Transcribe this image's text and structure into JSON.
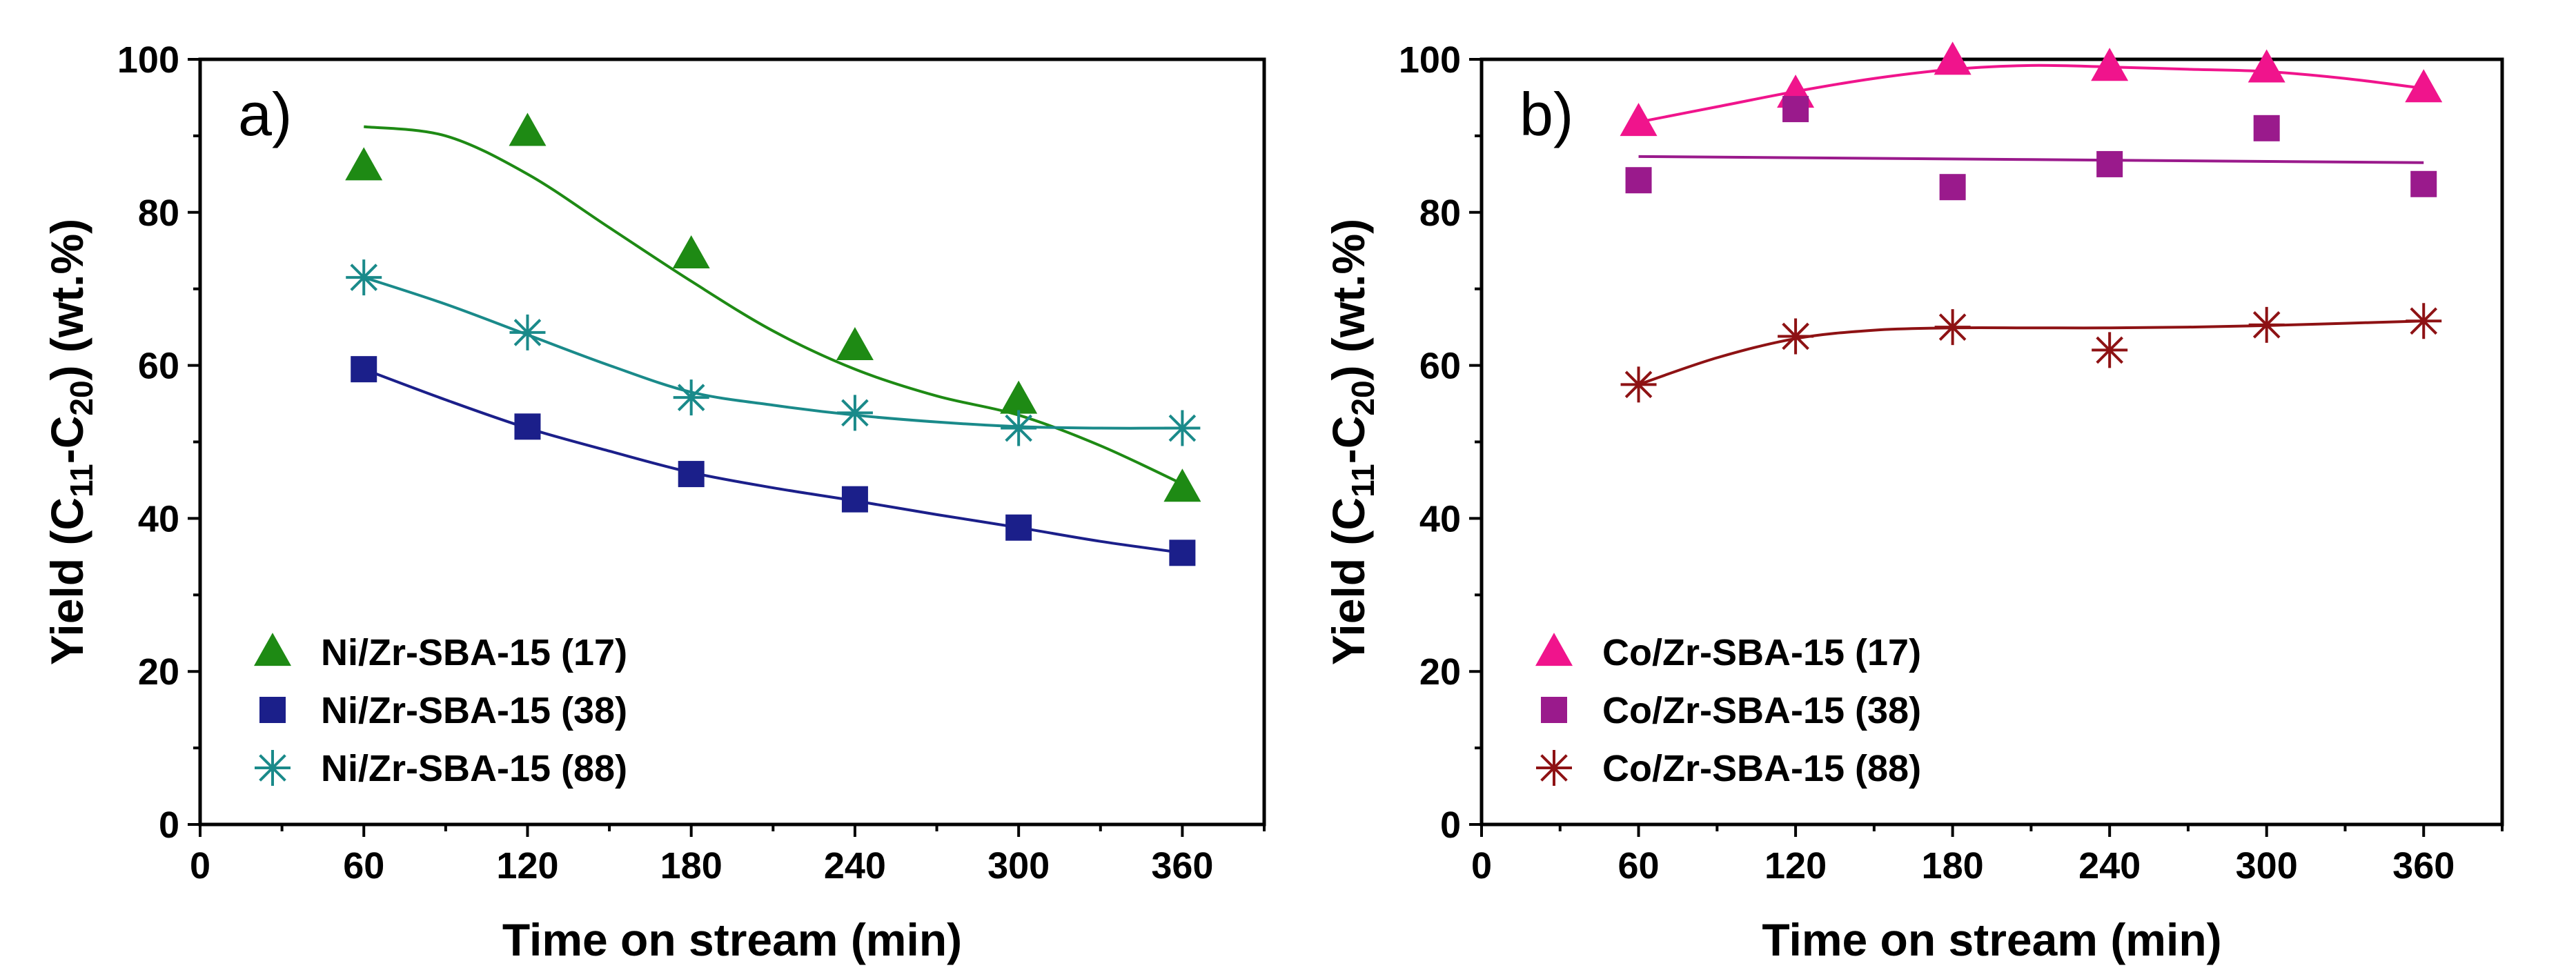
{
  "chart_data": [
    {
      "type": "scatter",
      "panel_label": "a)",
      "xlabel": "Time on stream (min)",
      "ylabel": {
        "prefix": "Yield (C",
        "sub1": "11",
        "mid": "-C",
        "sub2": "20",
        "suffix": ") (wt.%)"
      },
      "xlim": [
        0,
        390
      ],
      "ylim": [
        0,
        100
      ],
      "xticks": [
        0,
        60,
        120,
        180,
        240,
        300,
        360
      ],
      "yticks": [
        0,
        20,
        40,
        60,
        80,
        100
      ],
      "legend_position": "bottom-left",
      "series": [
        {
          "name": "Ni/Zr-SBA-15 (17)",
          "marker": "triangle",
          "color": "#1e8a14",
          "x": [
            60,
            120,
            180,
            240,
            300,
            360
          ],
          "y": [
            86,
            90.5,
            74.5,
            62.5,
            55.5,
            44
          ],
          "fit": [
            [
              60,
              91.2
            ],
            [
              90,
              90
            ],
            [
              120,
              85
            ],
            [
              150,
              78
            ],
            [
              180,
              71
            ],
            [
              210,
              64.5
            ],
            [
              240,
              59.5
            ],
            [
              270,
              56
            ],
            [
              300,
              53.5
            ],
            [
              330,
              49.5
            ],
            [
              360,
              44.5
            ]
          ]
        },
        {
          "name": "Ni/Zr-SBA-15 (38)",
          "marker": "square",
          "color": "#1b1f8a",
          "x": [
            60,
            120,
            180,
            240,
            300,
            360
          ],
          "y": [
            59.5,
            52,
            45.8,
            42.5,
            38.8,
            35.5
          ],
          "fit": [
            [
              60,
              59.5
            ],
            [
              90,
              55.5
            ],
            [
              120,
              51.8
            ],
            [
              150,
              48.8
            ],
            [
              180,
              46
            ],
            [
              210,
              44
            ],
            [
              240,
              42.3
            ],
            [
              270,
              40.5
            ],
            [
              300,
              38.8
            ],
            [
              330,
              37
            ],
            [
              360,
              35.5
            ]
          ]
        },
        {
          "name": "Ni/Zr-SBA-15 (88)",
          "marker": "asterisk",
          "color": "#1a8a8a",
          "x": [
            60,
            120,
            180,
            240,
            300,
            360
          ],
          "y": [
            71.5,
            64.3,
            55.8,
            53.8,
            51.8,
            51.8
          ],
          "fit": [
            [
              60,
              71.5
            ],
            [
              90,
              68
            ],
            [
              120,
              64
            ],
            [
              150,
              60
            ],
            [
              180,
              56.5
            ],
            [
              210,
              54.8
            ],
            [
              240,
              53.5
            ],
            [
              270,
              52.6
            ],
            [
              300,
              52
            ],
            [
              330,
              51.8
            ],
            [
              360,
              51.8
            ]
          ]
        }
      ]
    },
    {
      "type": "scatter",
      "panel_label": "b)",
      "xlabel": "Time on stream (min)",
      "ylabel": {
        "prefix": "Yield (C",
        "sub1": "11",
        "mid": "-C",
        "sub2": "20",
        "suffix": ") (wt.%)"
      },
      "xlim": [
        0,
        390
      ],
      "ylim": [
        0,
        100
      ],
      "xticks": [
        0,
        60,
        120,
        180,
        240,
        300,
        360
      ],
      "yticks": [
        0,
        20,
        40,
        60,
        80,
        100
      ],
      "legend_position": "bottom-left",
      "series": [
        {
          "name": "Co/Zr-SBA-15 (17)",
          "marker": "triangle",
          "color": "#f0148c",
          "x": [
            60,
            120,
            180,
            240,
            300,
            360
          ],
          "y": [
            91.8,
            95.5,
            99.8,
            99,
            98.8,
            96.2
          ],
          "fit": [
            [
              60,
              91.8
            ],
            [
              90,
              93.8
            ],
            [
              120,
              95.8
            ],
            [
              150,
              97.5
            ],
            [
              180,
              98.7
            ],
            [
              210,
              99.2
            ],
            [
              240,
              99
            ],
            [
              270,
              98.7
            ],
            [
              300,
              98.4
            ],
            [
              330,
              97.5
            ],
            [
              360,
              96.2
            ]
          ]
        },
        {
          "name": "Co/Zr-SBA-15 (38)",
          "marker": "square",
          "color": "#9a1a8c",
          "x": [
            60,
            120,
            180,
            240,
            300,
            360
          ],
          "y": [
            84.2,
            93.5,
            83.3,
            86.3,
            91,
            83.7
          ],
          "fit": [
            [
              60,
              87.3
            ],
            [
              360,
              86.5
            ]
          ]
        },
        {
          "name": "Co/Zr-SBA-15 (88)",
          "marker": "asterisk",
          "color": "#8e1214",
          "x": [
            60,
            120,
            180,
            240,
            300,
            360
          ],
          "y": [
            57.5,
            63.8,
            65,
            62,
            65.3,
            65.8
          ],
          "fit": [
            [
              60,
              57.5
            ],
            [
              90,
              61
            ],
            [
              120,
              63.5
            ],
            [
              150,
              64.6
            ],
            [
              180,
              64.9
            ],
            [
              210,
              64.9
            ],
            [
              240,
              64.9
            ],
            [
              270,
              65
            ],
            [
              300,
              65.2
            ],
            [
              330,
              65.5
            ],
            [
              360,
              65.8
            ]
          ]
        }
      ]
    }
  ]
}
